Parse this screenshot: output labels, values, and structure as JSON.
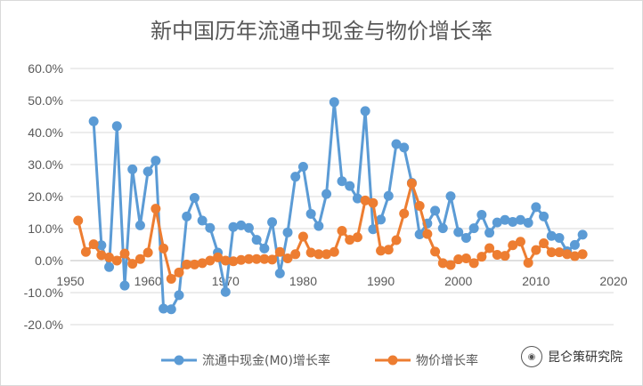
{
  "chart_data": {
    "type": "line",
    "title": "新中国历年流通中现金与物价增长率",
    "xlabel": "",
    "ylabel": "",
    "xlim": [
      1950,
      2020
    ],
    "xticks": [
      1950,
      1960,
      1970,
      1980,
      1990,
      2000,
      2010,
      2020
    ],
    "ylim": [
      -20,
      60
    ],
    "yticks": [
      -20,
      -10,
      0,
      10,
      20,
      30,
      40,
      50,
      60
    ],
    "ytick_labels": [
      "-20.0%",
      "-10.0%",
      "0.0%",
      "10.0%",
      "20.0%",
      "30.0%",
      "40.0%",
      "50.0%",
      "60.0%"
    ],
    "grid": true,
    "legend_position": "bottom",
    "series": [
      {
        "name": "流通中现金(M0)增长率",
        "color": "#5b9bd5",
        "points": [
          [
            1953,
            43.5
          ],
          [
            1954,
            4.8
          ],
          [
            1955,
            -2.0
          ],
          [
            1956,
            42.0
          ],
          [
            1957,
            -7.8
          ],
          [
            1958,
            28.5
          ],
          [
            1959,
            11.0
          ],
          [
            1960,
            27.8
          ],
          [
            1961,
            31.2
          ],
          [
            1962,
            -15.0
          ],
          [
            1963,
            -15.2
          ],
          [
            1964,
            -10.8
          ],
          [
            1965,
            13.8
          ],
          [
            1966,
            19.6
          ],
          [
            1967,
            12.5
          ],
          [
            1968,
            10.2
          ],
          [
            1969,
            2.5
          ],
          [
            1970,
            -9.8
          ],
          [
            1971,
            10.5
          ],
          [
            1972,
            11.0
          ],
          [
            1973,
            10.2
          ],
          [
            1974,
            6.5
          ],
          [
            1975,
            3.8
          ],
          [
            1976,
            12.0
          ],
          [
            1977,
            -4.0
          ],
          [
            1978,
            8.8
          ],
          [
            1979,
            26.2
          ],
          [
            1980,
            29.3
          ],
          [
            1981,
            14.6
          ],
          [
            1982,
            10.8
          ],
          [
            1983,
            20.8
          ],
          [
            1984,
            49.5
          ],
          [
            1985,
            24.8
          ],
          [
            1986,
            23.3
          ],
          [
            1987,
            19.4
          ],
          [
            1988,
            46.7
          ],
          [
            1989,
            9.8
          ],
          [
            1990,
            12.8
          ],
          [
            1991,
            20.2
          ],
          [
            1992,
            36.4
          ],
          [
            1993,
            35.3
          ],
          [
            1994,
            24.3
          ],
          [
            1995,
            8.2
          ],
          [
            1996,
            11.6
          ],
          [
            1997,
            15.6
          ],
          [
            1998,
            10.1
          ],
          [
            1999,
            20.1
          ],
          [
            2000,
            8.9
          ],
          [
            2001,
            7.1
          ],
          [
            2002,
            10.1
          ],
          [
            2003,
            14.3
          ],
          [
            2004,
            8.7
          ],
          [
            2005,
            11.9
          ],
          [
            2006,
            12.7
          ],
          [
            2007,
            12.1
          ],
          [
            2008,
            12.7
          ],
          [
            2009,
            11.8
          ],
          [
            2010,
            16.7
          ],
          [
            2011,
            13.8
          ],
          [
            2012,
            7.7
          ],
          [
            2013,
            7.1
          ],
          [
            2014,
            2.9
          ],
          [
            2015,
            4.9
          ],
          [
            2016,
            8.1
          ]
        ]
      },
      {
        "name": "物价增长率",
        "color": "#ed7d31",
        "points": [
          [
            1951,
            12.5
          ],
          [
            1952,
            2.7
          ],
          [
            1953,
            5.1
          ],
          [
            1954,
            1.7
          ],
          [
            1955,
            1.0
          ],
          [
            1956,
            0.0
          ],
          [
            1957,
            2.2
          ],
          [
            1958,
            -1.0
          ],
          [
            1959,
            0.5
          ],
          [
            1960,
            2.5
          ],
          [
            1961,
            16.2
          ],
          [
            1962,
            3.8
          ],
          [
            1963,
            -5.7
          ],
          [
            1964,
            -3.7
          ],
          [
            1965,
            -1.2
          ],
          [
            1966,
            -1.2
          ],
          [
            1967,
            -0.8
          ],
          [
            1968,
            0.0
          ],
          [
            1969,
            1.0
          ],
          [
            1970,
            0.0
          ],
          [
            1971,
            -0.2
          ],
          [
            1972,
            0.2
          ],
          [
            1973,
            0.5
          ],
          [
            1974,
            0.5
          ],
          [
            1975,
            0.5
          ],
          [
            1976,
            0.3
          ],
          [
            1977,
            2.7
          ],
          [
            1978,
            0.7
          ],
          [
            1979,
            2.0
          ],
          [
            1980,
            7.5
          ],
          [
            1981,
            2.5
          ],
          [
            1982,
            2.0
          ],
          [
            1983,
            2.0
          ],
          [
            1984,
            2.7
          ],
          [
            1985,
            9.3
          ],
          [
            1986,
            6.5
          ],
          [
            1987,
            7.3
          ],
          [
            1988,
            18.8
          ],
          [
            1989,
            18.0
          ],
          [
            1990,
            3.1
          ],
          [
            1991,
            3.4
          ],
          [
            1992,
            6.4
          ],
          [
            1993,
            14.7
          ],
          [
            1994,
            24.1
          ],
          [
            1995,
            17.1
          ],
          [
            1996,
            8.3
          ],
          [
            1997,
            2.8
          ],
          [
            1998,
            -0.8
          ],
          [
            1999,
            -1.4
          ],
          [
            2000,
            0.4
          ],
          [
            2001,
            0.7
          ],
          [
            2002,
            -0.8
          ],
          [
            2003,
            1.2
          ],
          [
            2004,
            3.9
          ],
          [
            2005,
            1.8
          ],
          [
            2006,
            1.5
          ],
          [
            2007,
            4.8
          ],
          [
            2008,
            5.9
          ],
          [
            2009,
            -0.7
          ],
          [
            2010,
            3.3
          ],
          [
            2011,
            5.4
          ],
          [
            2012,
            2.6
          ],
          [
            2013,
            2.6
          ],
          [
            2014,
            2.0
          ],
          [
            2015,
            1.4
          ],
          [
            2016,
            2.0
          ]
        ]
      }
    ]
  },
  "watermark": {
    "icon": "wechat-icon",
    "text": "昆仑策研究院"
  }
}
